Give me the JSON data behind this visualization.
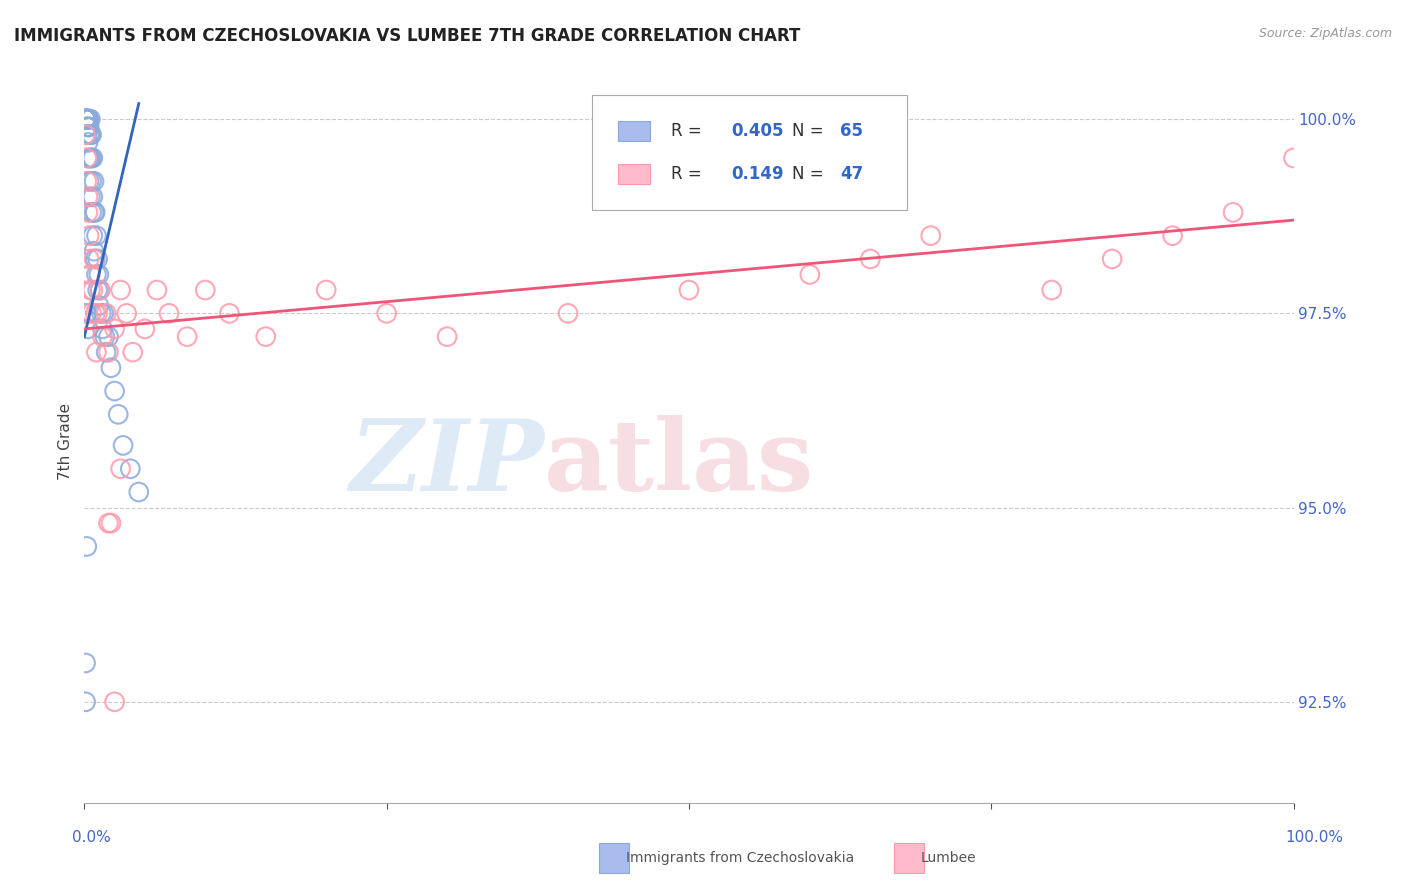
{
  "title": "IMMIGRANTS FROM CZECHOSLOVAKIA VS LUMBEE 7TH GRADE CORRELATION CHART",
  "source": "Source: ZipAtlas.com",
  "ylabel": "7th Grade",
  "right_yticks": [
    100.0,
    97.5,
    95.0,
    92.5
  ],
  "right_ytick_labels": [
    "100.0%",
    "97.5%",
    "95.0%",
    "92.5%"
  ],
  "blue_color": "#88AADD",
  "pink_color": "#FF99AA",
  "blue_fill_color": "#AABBEE",
  "pink_fill_color": "#FFBBCC",
  "blue_line_color": "#3366BB",
  "pink_line_color": "#EE5577",
  "xmin": 0.0,
  "xmax": 1.0,
  "ymin": 91.2,
  "ymax": 100.5,
  "grid_yticks": [
    100.0,
    97.5,
    95.0,
    92.5
  ],
  "blue_x": [
    0.001,
    0.001,
    0.001,
    0.001,
    0.001,
    0.001,
    0.001,
    0.001,
    0.002,
    0.002,
    0.002,
    0.002,
    0.002,
    0.002,
    0.003,
    0.003,
    0.003,
    0.003,
    0.003,
    0.003,
    0.004,
    0.004,
    0.004,
    0.004,
    0.004,
    0.005,
    0.005,
    0.005,
    0.005,
    0.006,
    0.006,
    0.006,
    0.006,
    0.007,
    0.007,
    0.007,
    0.008,
    0.008,
    0.008,
    0.009,
    0.009,
    0.01,
    0.01,
    0.011,
    0.011,
    0.012,
    0.012,
    0.013,
    0.014,
    0.015,
    0.016,
    0.017,
    0.018,
    0.02,
    0.022,
    0.025,
    0.028,
    0.032,
    0.038,
    0.045,
    0.002,
    0.003,
    0.001,
    0.002,
    0.001
  ],
  "blue_y": [
    100.0,
    100.0,
    100.0,
    100.0,
    100.0,
    100.0,
    100.0,
    99.8,
    100.0,
    100.0,
    100.0,
    100.0,
    99.9,
    99.8,
    100.0,
    100.0,
    100.0,
    99.9,
    99.7,
    99.5,
    100.0,
    99.9,
    99.8,
    99.5,
    99.2,
    100.0,
    99.8,
    99.5,
    99.0,
    99.8,
    99.5,
    99.2,
    98.8,
    99.5,
    99.0,
    98.5,
    99.2,
    98.8,
    98.3,
    98.8,
    98.2,
    98.5,
    98.0,
    98.2,
    97.8,
    98.0,
    97.6,
    97.8,
    97.5,
    97.3,
    97.5,
    97.2,
    97.0,
    97.2,
    96.8,
    96.5,
    96.2,
    95.8,
    95.5,
    95.2,
    97.5,
    97.3,
    92.5,
    94.5,
    93.0
  ],
  "pink_x": [
    0.001,
    0.002,
    0.002,
    0.003,
    0.003,
    0.004,
    0.004,
    0.005,
    0.005,
    0.006,
    0.007,
    0.008,
    0.009,
    0.01,
    0.011,
    0.013,
    0.015,
    0.018,
    0.02,
    0.025,
    0.03,
    0.035,
    0.04,
    0.05,
    0.06,
    0.07,
    0.085,
    0.1,
    0.12,
    0.15,
    0.2,
    0.25,
    0.3,
    0.4,
    0.5,
    0.6,
    0.65,
    0.7,
    0.8,
    0.85,
    0.9,
    0.95,
    1.0,
    0.02,
    0.03,
    0.022,
    0.025
  ],
  "pink_y": [
    99.8,
    99.5,
    99.2,
    99.0,
    98.8,
    98.5,
    98.2,
    98.0,
    97.8,
    97.5,
    97.8,
    98.2,
    97.5,
    97.0,
    97.5,
    97.8,
    97.2,
    97.5,
    97.0,
    97.3,
    97.8,
    97.5,
    97.0,
    97.3,
    97.8,
    97.5,
    97.2,
    97.8,
    97.5,
    97.2,
    97.8,
    97.5,
    97.2,
    97.5,
    97.8,
    98.0,
    98.2,
    98.5,
    97.8,
    98.2,
    98.5,
    98.8,
    99.5,
    94.8,
    95.5,
    94.8,
    92.5
  ],
  "blue_line_x0": 0.0,
  "blue_line_y0": 97.2,
  "blue_line_x1": 0.045,
  "blue_line_y1": 100.2,
  "pink_line_x0": 0.0,
  "pink_line_y0": 97.3,
  "pink_line_x1": 1.0,
  "pink_line_y1": 98.7
}
